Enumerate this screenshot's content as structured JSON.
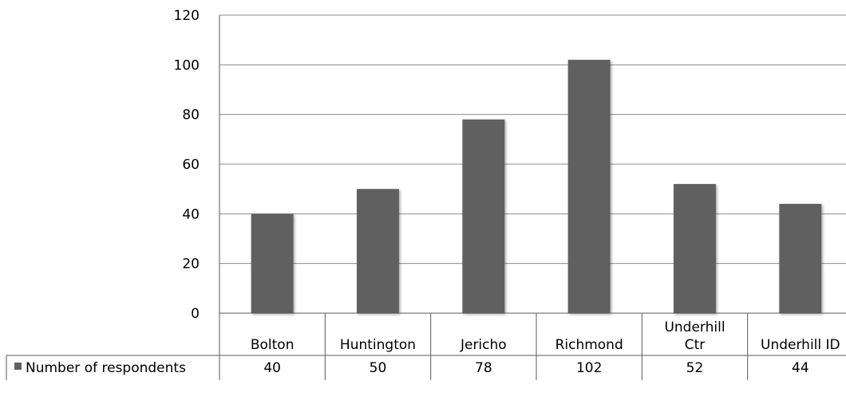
{
  "chart_data": {
    "type": "bar",
    "categories": [
      "Bolton",
      "Huntington",
      "Jericho",
      "Richmond",
      "Underhill Ctr",
      "Underhill ID"
    ],
    "series": [
      {
        "name": "Number of respondents",
        "values": [
          40,
          50,
          78,
          102,
          52,
          44
        ],
        "color": "#606060"
      }
    ],
    "ylim": [
      0,
      120
    ],
    "yticks": [
      0,
      20,
      40,
      60,
      80,
      100,
      120
    ],
    "grid": true,
    "legend": "data-table",
    "data_table": true
  }
}
